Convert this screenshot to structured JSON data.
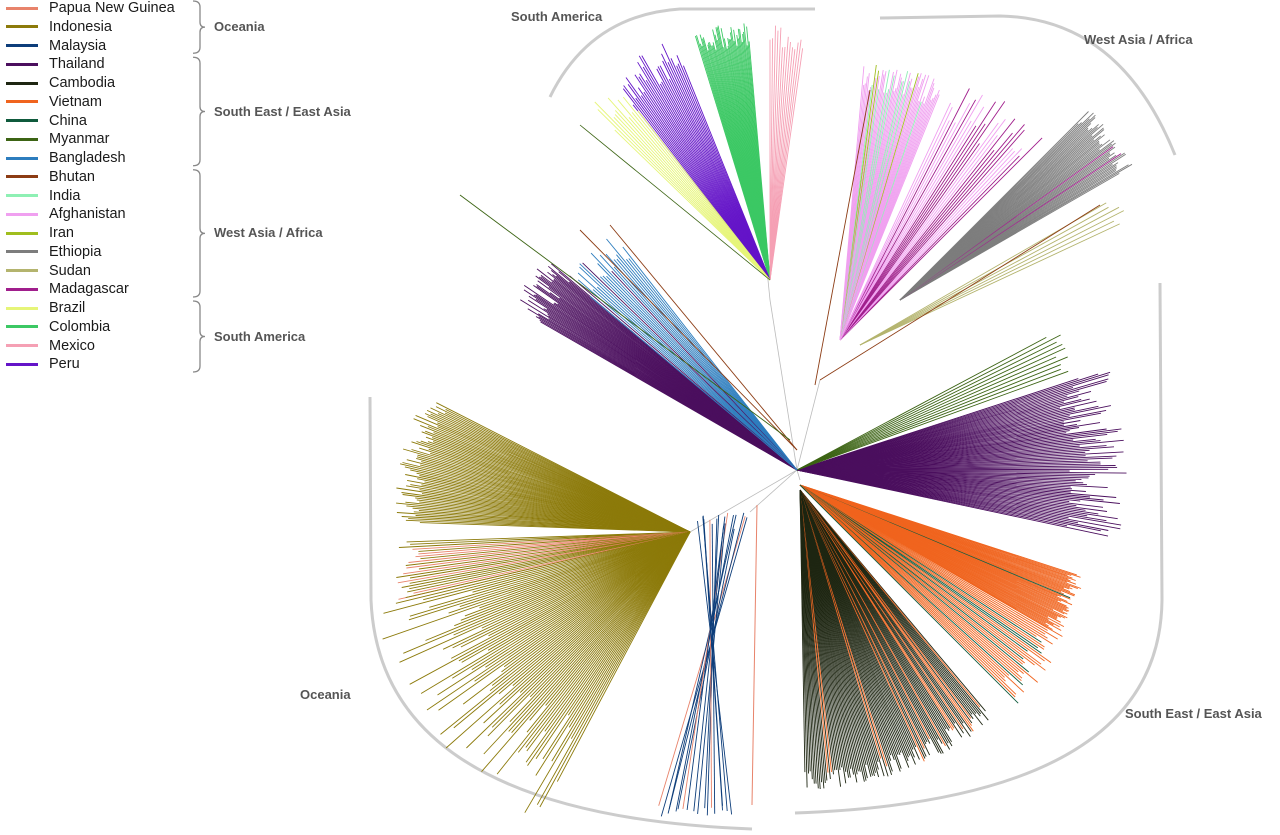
{
  "legend": {
    "countries": [
      {
        "name": "Papua New Guinea",
        "color": "#e8836b"
      },
      {
        "name": "Indonesia",
        "color": "#8c7a0a"
      },
      {
        "name": "Malaysia",
        "color": "#0d3d7a"
      },
      {
        "name": "Thailand",
        "color": "#4b0f5e"
      },
      {
        "name": "Cambodia",
        "color": "#1e2612"
      },
      {
        "name": "Vietnam",
        "color": "#f0641e"
      },
      {
        "name": "China",
        "color": "#0f5a3c"
      },
      {
        "name": "Myanmar",
        "color": "#3c6414"
      },
      {
        "name": "Bangladesh",
        "color": "#2d7dbe"
      },
      {
        "name": "Bhutan",
        "color": "#8c3c14"
      },
      {
        "name": "India",
        "color": "#8ef0b4"
      },
      {
        "name": "Afghanistan",
        "color": "#f0a0f0"
      },
      {
        "name": "Iran",
        "color": "#a0be1e"
      },
      {
        "name": "Ethiopia",
        "color": "#7d7d7d"
      },
      {
        "name": "Sudan",
        "color": "#b4b46e"
      },
      {
        "name": "Madagascar",
        "color": "#a01e8c"
      },
      {
        "name": "Brazil",
        "color": "#e6f578"
      },
      {
        "name": "Colombia",
        "color": "#3cc864"
      },
      {
        "name": "Mexico",
        "color": "#f5a0b4"
      },
      {
        "name": "Peru",
        "color": "#6414c8"
      }
    ],
    "groups": [
      {
        "label": "Oceania",
        "from": 0,
        "to": 2
      },
      {
        "label": "South East / East Asia",
        "from": 3,
        "to": 8
      },
      {
        "label": "West Asia / Africa",
        "from": 9,
        "to": 15
      },
      {
        "label": "South America",
        "from": 16,
        "to": 19
      }
    ]
  },
  "regions": {
    "south_america": "South America",
    "west_asia_africa": "West Asia / Africa",
    "oceania": "Oceania",
    "south_east_asia": "South East / East Asia"
  }
}
